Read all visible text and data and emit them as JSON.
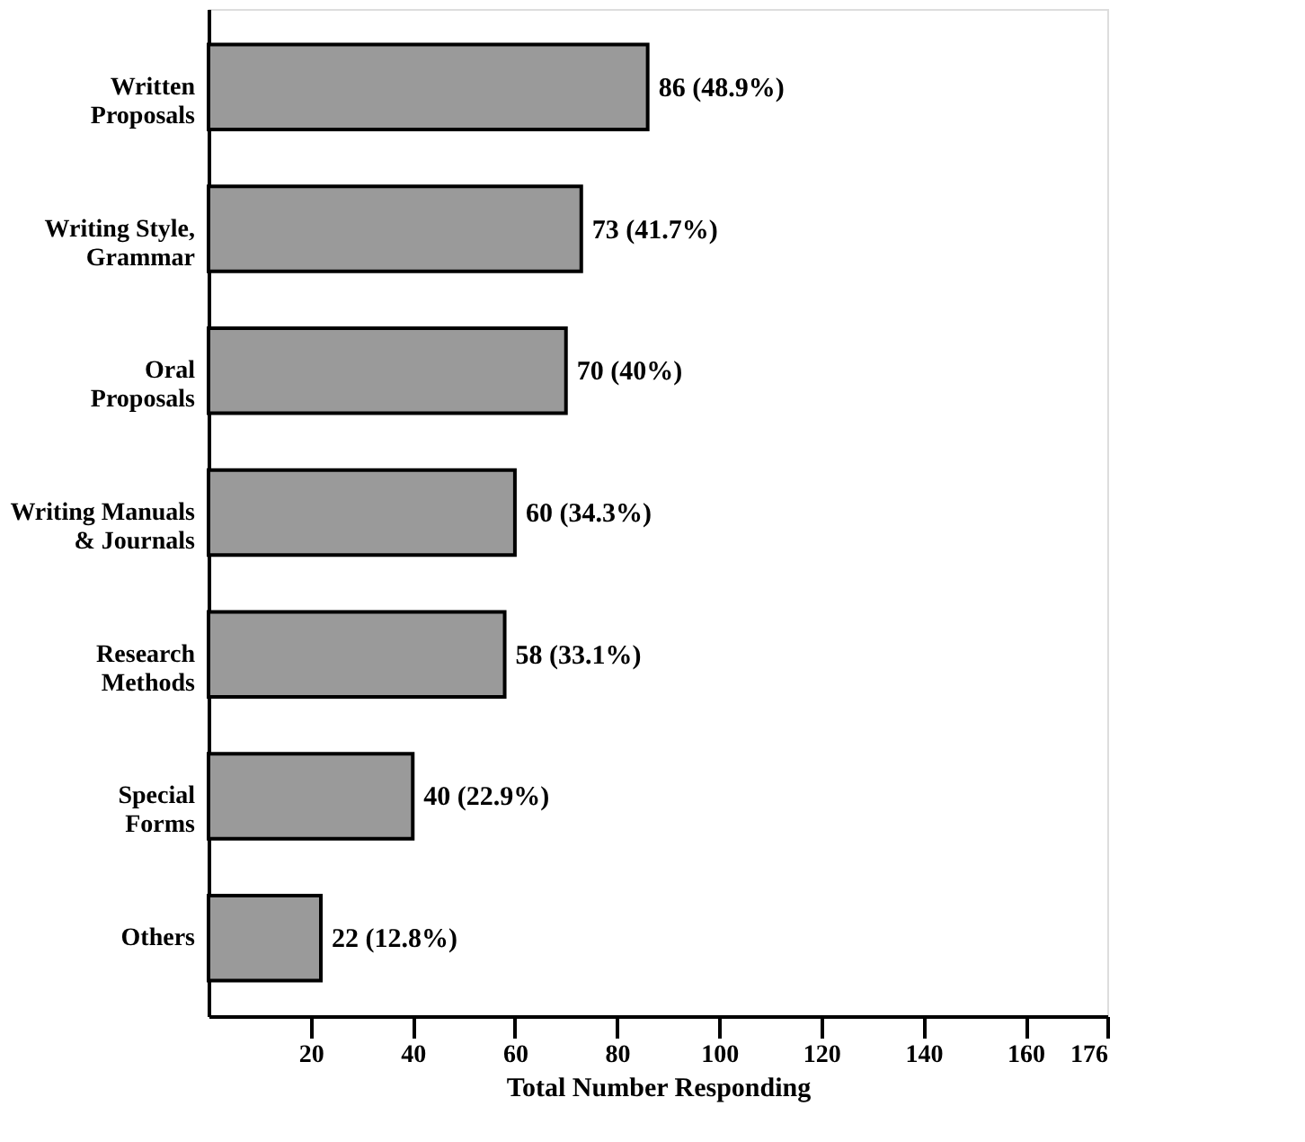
{
  "chart_data": {
    "type": "bar",
    "orientation": "horizontal",
    "xlabel": "Total Number Responding",
    "categories": [
      "Written\nProposals",
      "Writing Style,\nGrammar",
      "Oral\nProposals",
      "Writing Manuals\n& Journals",
      "Research\nMethods",
      "Special\nForms",
      "Others"
    ],
    "values": [
      86,
      73,
      70,
      60,
      58,
      40,
      22
    ],
    "value_labels": [
      "86 (48.9%)",
      "73 (41.7%)",
      "70 (40%)",
      "60 (34.3%)",
      "58 (33.1%)",
      "40 (22.9%)",
      "22 (12.8%)"
    ],
    "color": "#9a9a9a",
    "xlim": [
      0,
      176
    ],
    "xticks": [
      20,
      40,
      60,
      80,
      100,
      120,
      140,
      160,
      176
    ],
    "grid": false
  }
}
